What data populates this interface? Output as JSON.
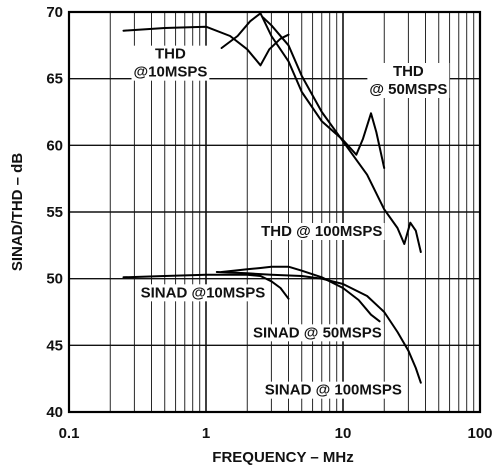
{
  "chart_data": {
    "type": "line",
    "xlabel": "FREQUENCY – MHz",
    "ylabel": "SINAD/THD – dB",
    "xscale": "log",
    "xlim": [
      0.1,
      100
    ],
    "ylim": [
      40,
      70
    ],
    "grid": true,
    "x_ticks": [
      {
        "value": 0.1,
        "label": "0.1"
      },
      {
        "value": 1,
        "label": "1"
      },
      {
        "value": 10,
        "label": "10"
      },
      {
        "value": 100,
        "label": "100"
      }
    ],
    "y_ticks": [
      {
        "value": 40,
        "label": "40"
      },
      {
        "value": 45,
        "label": "45"
      },
      {
        "value": 50,
        "label": "50"
      },
      {
        "value": 55,
        "label": "55"
      },
      {
        "value": 60,
        "label": "60"
      },
      {
        "value": 65,
        "label": "65"
      },
      {
        "value": 70,
        "label": "70"
      }
    ],
    "series": [
      {
        "name": "THD @10MSPS",
        "x": [
          0.25,
          0.5,
          1.0,
          1.5,
          2.0,
          2.5,
          2.9,
          3.5,
          4.0
        ],
        "y": [
          68.6,
          68.8,
          68.9,
          68.2,
          67.2,
          66.0,
          67.2,
          68.0,
          68.3
        ]
      },
      {
        "name": "THD @ 50MSPS",
        "x": [
          1.3,
          1.7,
          2.1,
          2.5,
          3.0,
          4.0,
          5.0,
          7.0,
          10.0,
          12.5,
          14.0,
          16.0,
          17.5,
          20.0
        ],
        "y": [
          67.3,
          68.2,
          69.3,
          69.9,
          68.2,
          66.3,
          64.0,
          61.8,
          60.4,
          59.3,
          60.5,
          62.4,
          61.0,
          58.3
        ]
      },
      {
        "name": "THD @ 100MSPS",
        "x": [
          2.6,
          3.0,
          4.0,
          5.0,
          7.0,
          10.0,
          15.0,
          20.0,
          25.0,
          28.0,
          31.0,
          34.0,
          37.0
        ],
        "y": [
          69.6,
          69.0,
          67.5,
          65.2,
          62.5,
          60.3,
          57.8,
          55.2,
          53.8,
          52.6,
          54.2,
          53.6,
          52.0
        ]
      },
      {
        "name": "SINAD @ 10MSPS",
        "x": [
          0.25,
          0.5,
          1.0,
          1.5,
          2.0,
          2.5,
          3.0,
          3.5,
          4.0
        ],
        "y": [
          50.1,
          50.2,
          50.3,
          50.3,
          50.3,
          50.2,
          49.8,
          49.3,
          48.5
        ]
      },
      {
        "name": "SINAD @ 50MSPS",
        "x": [
          1.3,
          2.0,
          2.5,
          3.0,
          4.0,
          5.0,
          7.0,
          10.0,
          13.0,
          16.0,
          18.5
        ],
        "y": [
          50.5,
          50.7,
          50.8,
          50.9,
          50.9,
          50.6,
          50.1,
          49.3,
          48.4,
          47.3,
          46.8
        ]
      },
      {
        "name": "SINAD @ 100MSPS",
        "x": [
          1.2,
          2.0,
          3.0,
          5.0,
          7.0,
          10.0,
          15.0,
          20.0,
          25.0,
          30.0,
          34.0,
          37.0
        ],
        "y": [
          50.5,
          50.4,
          50.3,
          50.2,
          50.0,
          49.6,
          48.7,
          47.5,
          46.0,
          44.6,
          43.3,
          42.2
        ]
      }
    ],
    "annotations": [
      {
        "lines": [
          "THD",
          "@10MSPS"
        ],
        "x": 0.55,
        "y": 66.5
      },
      {
        "lines": [
          "THD",
          "@ 50MSPS"
        ],
        "x": 30.0,
        "y": 65.2
      },
      {
        "lines": [
          "THD @ 100MSPS"
        ],
        "x": 7.0,
        "y": 53.2
      },
      {
        "lines": [
          "SINAD @10MSPS"
        ],
        "x": 0.95,
        "y": 48.6
      },
      {
        "lines": [
          "SINAD @ 50MSPS"
        ],
        "x": 6.5,
        "y": 45.6
      },
      {
        "lines": [
          "SINAD @ 100MSPS"
        ],
        "x": 8.5,
        "y": 41.3
      }
    ]
  }
}
